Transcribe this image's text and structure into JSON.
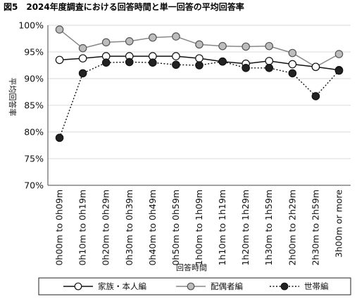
{
  "chart_data": {
    "type": "line",
    "title": "図5　2024年度調査における回答時間と単一回答の平均回答率",
    "xlabel": "回答時間",
    "ylabel": "平均回答率",
    "ylim": [
      70,
      100
    ],
    "yticks": [
      "100%",
      "95%",
      "90%",
      "85%",
      "80%",
      "75%",
      "70%"
    ],
    "categories": [
      "0h00m to 0h09m",
      "0h10m to 0h19m",
      "0h20m to 0h29m",
      "0h30m to 0h39m",
      "0h40m to 0h49m",
      "0h50m to 0h59m",
      "1h00m to 1h09m",
      "1h10m to 1h19m",
      "1h20m to 1h29m",
      "1h30m to 1h59m",
      "2h00m to 2h29m",
      "2h30m to 2h59m",
      "3h00m or more"
    ],
    "grid": true,
    "legend": "bottom",
    "series": [
      {
        "name": "家族・本人編",
        "style": "solid-black-line-white-marker",
        "values": [
          93.5,
          93.8,
          94.2,
          94.2,
          94.2,
          94.2,
          93.8,
          93.2,
          92.8,
          93.3,
          92.7,
          92.2,
          91.6
        ]
      },
      {
        "name": "配偶者編",
        "style": "solid-gray-line-gray-marker",
        "values": [
          99.2,
          95.7,
          96.8,
          97.0,
          97.7,
          97.9,
          96.4,
          96.1,
          96.0,
          96.1,
          94.8,
          92.2,
          94.6
        ]
      },
      {
        "name": "世帯編",
        "style": "dotted-black-line-black-marker",
        "values": [
          78.9,
          91.0,
          93.0,
          93.1,
          93.0,
          92.6,
          92.5,
          93.2,
          92.0,
          92.0,
          91.0,
          86.7,
          91.5
        ]
      }
    ]
  }
}
